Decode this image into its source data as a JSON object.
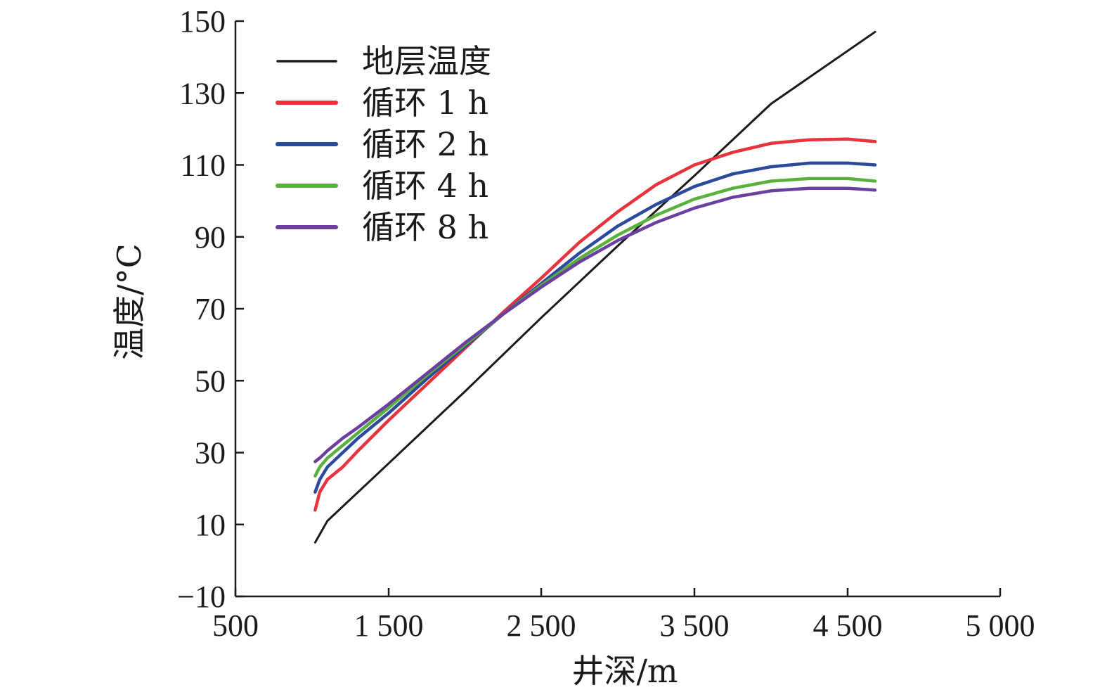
{
  "chart_data": {
    "type": "line",
    "xlabel": "井深/m",
    "ylabel": "温度/°C",
    "xlim": [
      500,
      5000
    ],
    "ylim": [
      -10,
      150
    ],
    "xticks": [
      500,
      1500,
      2500,
      3500,
      4500,
      5000
    ],
    "xtick_labels": [
      "500",
      "1 500",
      "2 500",
      "3 500",
      "4 500",
      "5 000"
    ],
    "yticks": [
      -10,
      10,
      30,
      50,
      70,
      90,
      110,
      130,
      150
    ],
    "ytick_labels": [
      "−10",
      "10",
      "30",
      "50",
      "70",
      "90",
      "110",
      "130",
      "150"
    ],
    "legend_position": "top-left",
    "series": [
      {
        "name": "地层温度",
        "color": "#1a1a1a",
        "x": [
          1020,
          1100,
          1500,
          2000,
          2500,
          3000,
          3500,
          4000,
          4590
        ],
        "y": [
          5,
          11,
          27,
          47,
          67.5,
          87.5,
          107,
          127,
          147
        ]
      },
      {
        "name": "循环 1 h",
        "color": "#e8323c",
        "x": [
          1020,
          1050,
          1100,
          1200,
          1300,
          1500,
          1750,
          2000,
          2250,
          2500,
          2750,
          3000,
          3250,
          3500,
          3750,
          4000,
          4250,
          4500,
          4590
        ],
        "y": [
          14,
          19,
          22.5,
          26,
          30.5,
          39,
          49,
          59,
          69,
          78.5,
          88.5,
          97,
          104.5,
          110,
          113.5,
          116,
          117,
          117.2,
          116.5
        ]
      },
      {
        "name": "循环 2 h",
        "color": "#2b4a9c",
        "x": [
          1020,
          1050,
          1100,
          1200,
          1300,
          1500,
          1750,
          2000,
          2250,
          2500,
          2750,
          3000,
          3250,
          3500,
          3750,
          4000,
          4250,
          4500,
          4590
        ],
        "y": [
          19,
          22.5,
          26,
          30,
          34,
          41,
          50.5,
          59.5,
          68.5,
          77,
          85.5,
          93,
          99,
          104,
          107.5,
          109.5,
          110.5,
          110.5,
          110
        ]
      },
      {
        "name": "循环 4 h",
        "color": "#5ab03c",
        "x": [
          1020,
          1050,
          1100,
          1200,
          1300,
          1500,
          1750,
          2000,
          2250,
          2500,
          2750,
          3000,
          3250,
          3500,
          3750,
          4000,
          4250,
          4500,
          4590
        ],
        "y": [
          23.5,
          26,
          28.5,
          32,
          35.5,
          42.5,
          51.5,
          60,
          68.5,
          76.5,
          84,
          90.5,
          96,
          100.5,
          103.5,
          105.5,
          106.2,
          106.2,
          105.5
        ]
      },
      {
        "name": "循环 8 h",
        "color": "#6a3fa0",
        "x": [
          1020,
          1050,
          1100,
          1200,
          1300,
          1500,
          1750,
          2000,
          2250,
          2500,
          2750,
          3000,
          3250,
          3500,
          3750,
          4000,
          4250,
          4500,
          4590
        ],
        "y": [
          27.5,
          28.5,
          30.5,
          34,
          37,
          43.5,
          52,
          60.5,
          68.5,
          76,
          83,
          89,
          94,
          98,
          101,
          102.8,
          103.5,
          103.5,
          103
        ]
      }
    ]
  }
}
